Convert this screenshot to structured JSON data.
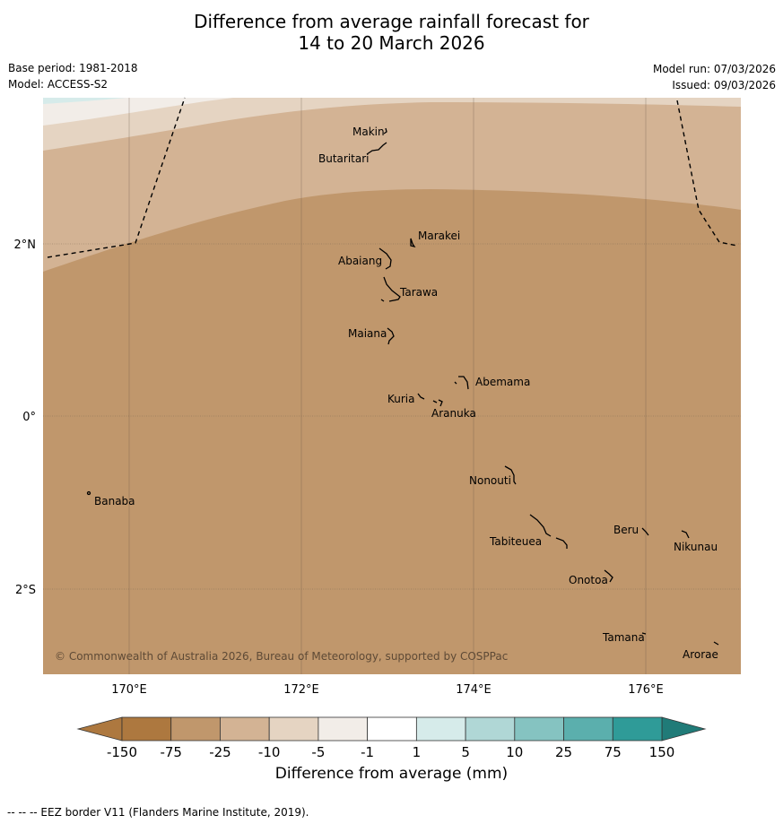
{
  "title": {
    "line1": "Difference from average rainfall forecast for",
    "line2": "14 to 20 March 2026"
  },
  "meta": {
    "base_period": "Base period: 1981-2018",
    "model": "Model: ACCESS-S2",
    "model_run": "Model run: 07/03/2026",
    "issued": "Issued: 09/03/2026"
  },
  "map": {
    "copyright": "© Commonwealth of Australia 2026, Bureau of Meteorology, supported by COSPPac",
    "lon_labels": [
      "170°E",
      "172°E",
      "174°E",
      "176°E"
    ],
    "lat_labels": [
      "2°N",
      "0°",
      "2°S"
    ],
    "islands": [
      "Makin",
      "Butaritari",
      "Marakei",
      "Abaiang",
      "Tarawa",
      "Maiana",
      "Abemama",
      "Kuria",
      "Aranuka",
      "Nonouti",
      "Banaba",
      "Tabiteuea",
      "Beru",
      "Nikunau",
      "Onotoa",
      "Tamana",
      "Arorae"
    ]
  },
  "colorbar": {
    "ticks": [
      "-150",
      "-75",
      "-25",
      "-10",
      "-5",
      "-1",
      "1",
      "5",
      "10",
      "25",
      "75",
      "150"
    ],
    "colors": [
      "#ad783f",
      "#c0976c",
      "#d3b394",
      "#e5d4c2",
      "#f2ede8",
      "#ffffff",
      "#d6ebea",
      "#b0d7d6",
      "#85c3c1",
      "#5bafad",
      "#2f9b98",
      "#207b78"
    ],
    "label": "Difference from average (mm)"
  },
  "footnote": "--  --  -- EEZ border V11 (Flanders Marine Institute, 2019)."
}
